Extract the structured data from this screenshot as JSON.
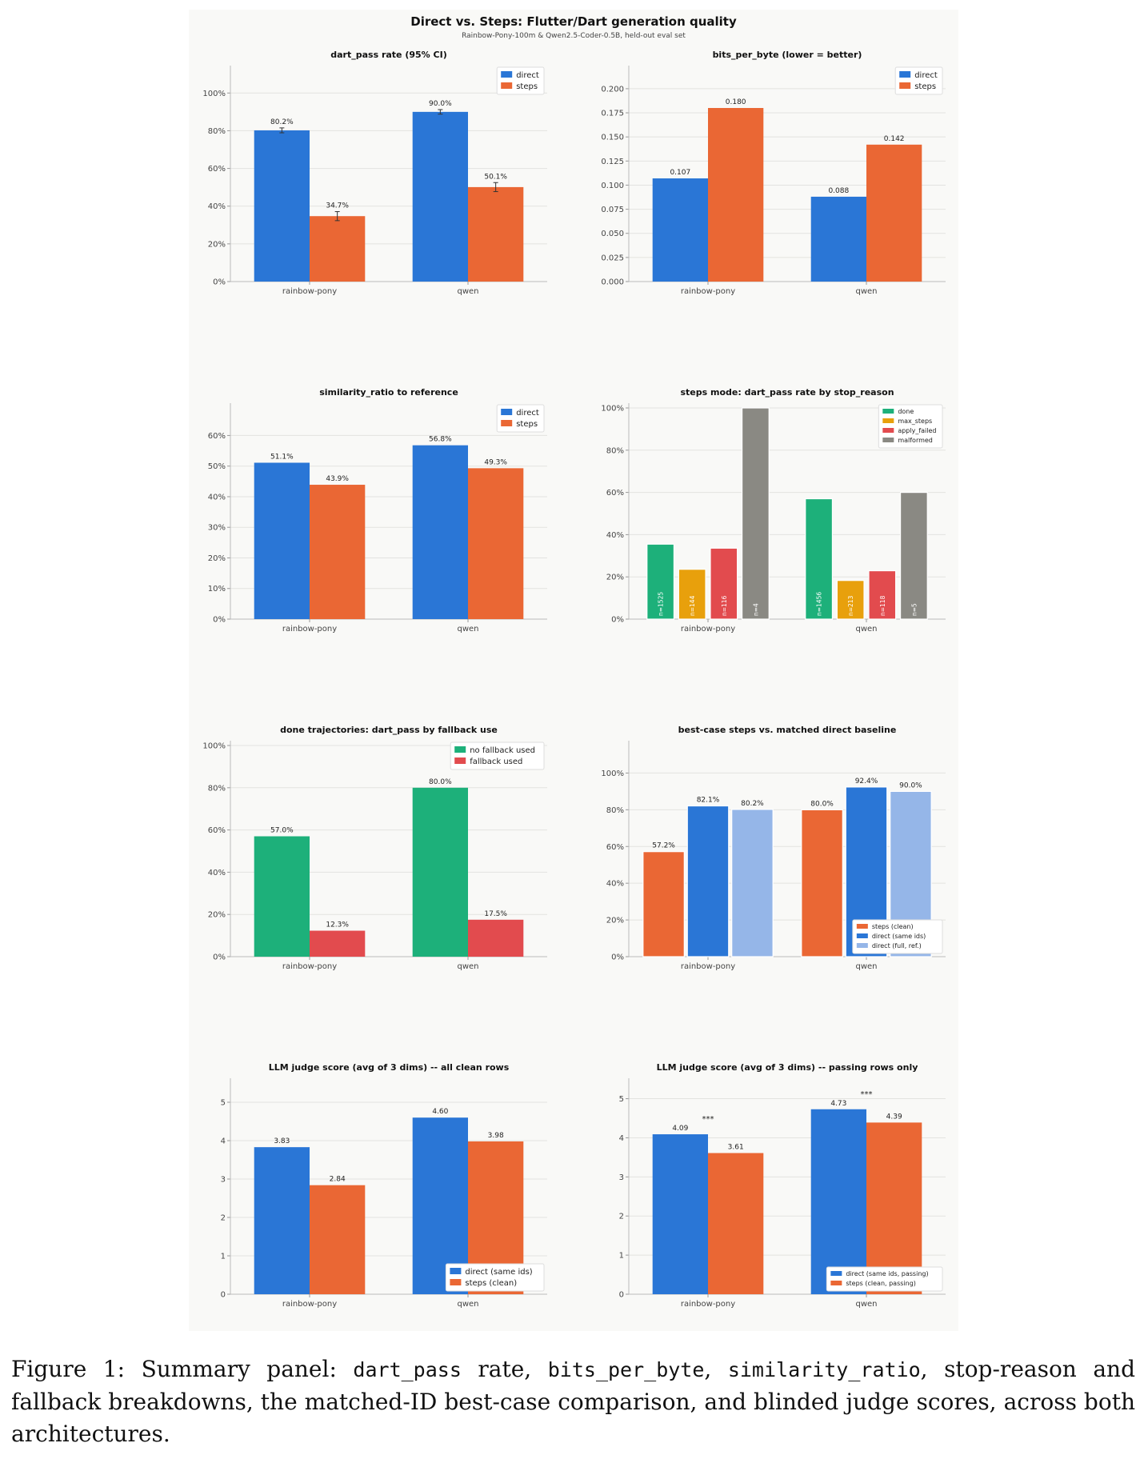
{
  "figure": {
    "title": "Direct vs. Steps: Flutter/Dart generation quality",
    "subtitle": "Rainbow-Pony-100m & Qwen2.5-Coder-0.5B, held-out eval set"
  },
  "colors": {
    "direct": "#2a76d6",
    "steps": "#ea6734",
    "done": "#1db07a",
    "max_steps": "#e8a00c",
    "apply_failed": "#e24b4e",
    "malformed": "#8a8983",
    "direct_full": "#95b6e8"
  },
  "chart_data": [
    {
      "id": "c1",
      "type": "bar",
      "title": "dart_pass rate  (95% CI)",
      "categories": [
        "rainbow-pony",
        "qwen"
      ],
      "ylim": [
        0,
        112
      ],
      "yticks": [
        0,
        20,
        40,
        60,
        80,
        100
      ],
      "ytick_format": "pct",
      "series": [
        {
          "name": "direct",
          "color": "#2a76d6",
          "values": [
            80.2,
            90.0
          ],
          "labels": [
            "80.2%",
            "90.0%"
          ],
          "ci": [
            [
              78.9,
              81.5
            ],
            [
              88.8,
              91.2
            ]
          ]
        },
        {
          "name": "steps",
          "color": "#ea6734",
          "values": [
            34.7,
            50.1
          ],
          "labels": [
            "34.7%",
            "50.1%"
          ],
          "ci": [
            [
              32.3,
              37.1
            ],
            [
              47.7,
              52.5
            ]
          ]
        }
      ],
      "legend": "top-right",
      "grid": "y"
    },
    {
      "id": "c2",
      "type": "bar",
      "title": "bits_per_byte  (lower = better)",
      "categories": [
        "rainbow-pony",
        "qwen"
      ],
      "ylim": [
        0,
        0.219
      ],
      "yticks": [
        0,
        0.025,
        0.05,
        0.075,
        0.1,
        0.125,
        0.15,
        0.175,
        0.2
      ],
      "ytick_format": "dec3",
      "series": [
        {
          "name": "direct",
          "color": "#2a76d6",
          "values": [
            0.107,
            0.088
          ],
          "labels": [
            "0.107",
            "0.088"
          ]
        },
        {
          "name": "steps",
          "color": "#ea6734",
          "values": [
            0.18,
            0.142
          ],
          "labels": [
            "0.180",
            "0.142"
          ]
        }
      ],
      "legend": "top-right",
      "grid": "y"
    },
    {
      "id": "c3",
      "type": "bar",
      "title": "similarity_ratio to reference",
      "categories": [
        "rainbow-pony",
        "qwen"
      ],
      "ylim": [
        0,
        69
      ],
      "yticks": [
        0,
        10,
        20,
        30,
        40,
        50,
        60
      ],
      "ytick_format": "pct",
      "series": [
        {
          "name": "direct",
          "color": "#2a76d6",
          "values": [
            51.1,
            56.8
          ],
          "labels": [
            "51.1%",
            "56.8%"
          ]
        },
        {
          "name": "steps",
          "color": "#ea6734",
          "values": [
            43.9,
            49.3
          ],
          "labels": [
            "43.9%",
            "49.3%"
          ]
        }
      ],
      "legend": "top-right",
      "grid": "y"
    },
    {
      "id": "c4",
      "type": "bar",
      "title": "steps mode: dart_pass rate by stop_reason",
      "categories": [
        "rainbow-pony",
        "qwen"
      ],
      "ylim": [
        0,
        100
      ],
      "yticks": [
        0,
        20,
        40,
        60,
        80,
        100
      ],
      "ytick_format": "pct",
      "series": [
        {
          "name": "done",
          "color": "#1db07a",
          "values": [
            35.5,
            57.0
          ],
          "inner": [
            "n=1525",
            "n=1456"
          ]
        },
        {
          "name": "max_steps",
          "color": "#e8a00c",
          "values": [
            23.6,
            18.3
          ],
          "inner": [
            "n=144",
            "n=213"
          ]
        },
        {
          "name": "apply_failed",
          "color": "#e24b4e",
          "values": [
            33.6,
            22.9
          ],
          "inner": [
            "n=116",
            "n=118"
          ]
        },
        {
          "name": "malformed",
          "color": "#8a8983",
          "values": [
            100,
            60.0
          ],
          "inner": [
            "n=4",
            "n=5"
          ]
        }
      ],
      "legend": "top-right",
      "grid": "y"
    },
    {
      "id": "c5",
      "type": "bar",
      "title": "done trajectories: dart_pass by fallback use",
      "categories": [
        "rainbow-pony",
        "qwen"
      ],
      "ylim": [
        0,
        100
      ],
      "yticks": [
        0,
        20,
        40,
        60,
        80,
        100
      ],
      "ytick_format": "pct",
      "series": [
        {
          "name": "no fallback used",
          "color": "#1db07a",
          "values": [
            57.0,
            80.0
          ],
          "labels": [
            "57.0%",
            "80.0%"
          ]
        },
        {
          "name": "fallback used",
          "color": "#e24b4e",
          "values": [
            12.3,
            17.5
          ],
          "labels": [
            "12.3%",
            "17.5%"
          ]
        }
      ],
      "legend": "top-right",
      "grid": "y"
    },
    {
      "id": "c6",
      "type": "bar",
      "title": "best-case steps vs. matched direct baseline",
      "categories": [
        "rainbow-pony",
        "qwen"
      ],
      "ylim": [
        0,
        115
      ],
      "yticks": [
        0,
        20,
        40,
        60,
        80,
        100
      ],
      "ytick_format": "pct",
      "series": [
        {
          "name": "steps (clean)",
          "color": "#ea6734",
          "values": [
            57.2,
            80.0
          ],
          "labels": [
            "57.2%",
            "80.0%"
          ]
        },
        {
          "name": "direct (same ids)",
          "color": "#2a76d6",
          "values": [
            82.1,
            92.4
          ],
          "labels": [
            "82.1%",
            "92.4%"
          ]
        },
        {
          "name": "direct (full, ref.)",
          "color": "#95b6e8",
          "values": [
            80.2,
            90.0
          ],
          "labels": [
            "80.2%",
            "90.0%"
          ]
        }
      ],
      "legend": "bottom-right",
      "grid": "y"
    },
    {
      "id": "c7",
      "type": "bar",
      "title": "LLM judge score (avg of 3 dims) -- all clean rows",
      "categories": [
        "rainbow-pony",
        "qwen"
      ],
      "ylim": [
        0,
        5.5
      ],
      "yticks": [
        0,
        1,
        2,
        3,
        4,
        5
      ],
      "ytick_format": "int",
      "series": [
        {
          "name": "direct (same ids)",
          "color": "#2a76d6",
          "values": [
            3.83,
            4.6
          ],
          "labels": [
            "3.83",
            "4.60"
          ]
        },
        {
          "name": "steps (clean)",
          "color": "#ea6734",
          "values": [
            2.84,
            3.98
          ],
          "labels": [
            "2.84",
            "3.98"
          ]
        }
      ],
      "legend": "bottom-right",
      "grid": "y"
    },
    {
      "id": "c8",
      "type": "bar",
      "title": "LLM judge score (avg of 3 dims) -- passing rows only",
      "categories": [
        "rainbow-pony",
        "qwen"
      ],
      "ylim": [
        0,
        5.4
      ],
      "yticks": [
        0,
        1,
        2,
        3,
        4,
        5
      ],
      "ytick_format": "int",
      "series": [
        {
          "name": "direct (same ids, passing)",
          "color": "#2a76d6",
          "values": [
            4.09,
            4.73
          ],
          "labels": [
            "4.09",
            "4.73"
          ]
        },
        {
          "name": "steps (clean, passing)",
          "color": "#ea6734",
          "values": [
            3.61,
            4.39
          ],
          "labels": [
            "3.61",
            "4.39"
          ]
        }
      ],
      "annotations": [
        "***",
        "***"
      ],
      "legend": "bottom-right",
      "grid": "y"
    }
  ],
  "caption": {
    "prefix": "Figure 1: Summary panel:",
    "t1": "dart_pass",
    "s1": "rate,",
    "t2": "bits_per_byte",
    "s2": ",",
    "t3": "similarity_ratio",
    "s3": ", stop-reason and fallback breakdowns, the matched-ID best-case comparison, and blinded judge scores, across both architectures."
  }
}
